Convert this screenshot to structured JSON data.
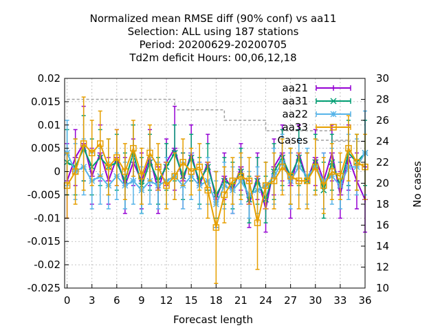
{
  "title_lines": [
    "Normalized mean RMSE diff (90% conf) vs aa11",
    "Selection: ALL using   187 stations",
    "Period: 20200629-20200705",
    "Td2m deficit   Hours:  00,06,12,18"
  ],
  "chart_data": {
    "type": "line",
    "title": "Normalized mean RMSE diff (90% conf) vs aa11",
    "xlabel": "Forecast length",
    "ylabel": "",
    "y2label": "No cases",
    "xlim": [
      -0.3,
      36
    ],
    "ylim": [
      -0.025,
      0.02
    ],
    "y2lim": [
      10,
      30
    ],
    "x_ticks": [
      0,
      3,
      6,
      9,
      12,
      15,
      18,
      21,
      24,
      27,
      30,
      33,
      36
    ],
    "y_ticks": [
      -0.025,
      -0.02,
      -0.015,
      -0.01,
      -0.005,
      0,
      0.005,
      0.01,
      0.015,
      0.02
    ],
    "y_tick_labels": [
      "-0.025",
      "-0.02",
      "-0.015",
      "-0.01",
      "-0.005",
      "0",
      "0.005",
      "0.01",
      "0.015",
      "0.02"
    ],
    "y2_ticks": [
      10,
      12,
      14,
      16,
      18,
      20,
      22,
      24,
      26,
      28,
      30
    ],
    "grid": true,
    "legend_position": "top-right",
    "x": [
      0,
      1,
      2,
      3,
      4,
      5,
      6,
      7,
      8,
      9,
      10,
      11,
      12,
      13,
      14,
      15,
      16,
      17,
      18,
      19,
      20,
      21,
      22,
      23,
      24,
      25,
      26,
      27,
      28,
      29,
      30,
      31,
      32,
      33,
      34,
      35,
      36
    ],
    "series": [
      {
        "name": "aa21",
        "color": "#9400d3",
        "marker": "plus",
        "values": [
          -0.002,
          0.003,
          0.006,
          -0.001,
          0.004,
          -0.002,
          0.003,
          -0.003,
          0.002,
          -0.002,
          0.003,
          -0.004,
          0.002,
          0.005,
          -0.002,
          0.004,
          -0.003,
          0.002,
          -0.006,
          -0.001,
          -0.004,
          0.001,
          -0.007,
          -0.001,
          -0.008,
          0.001,
          0.004,
          -0.003,
          0.004,
          -0.002,
          0.003,
          -0.002,
          0.004,
          -0.005,
          0.003,
          -0.002,
          -0.006
        ],
        "err": [
          0.008,
          0.006,
          0.008,
          0.006,
          0.006,
          0.005,
          0.006,
          0.006,
          0.005,
          0.006,
          0.006,
          0.005,
          0.005,
          0.009,
          0.006,
          0.006,
          0.005,
          0.006,
          0.006,
          0.005,
          0.005,
          0.005,
          0.005,
          0.005,
          0.005,
          0.006,
          0.006,
          0.007,
          0.006,
          0.006,
          0.006,
          0.006,
          0.006,
          0.005,
          0.007,
          0.006,
          0.007
        ]
      },
      {
        "name": "aa31",
        "color": "#009e73",
        "marker": "cross",
        "values": [
          0.002,
          0.001,
          0.005,
          0.001,
          0.003,
          0.001,
          0.002,
          -0.002,
          0.004,
          -0.003,
          0.002,
          -0.002,
          0.001,
          0.004,
          -0.001,
          0.003,
          -0.002,
          0.001,
          -0.005,
          -0.002,
          -0.003,
          0.0,
          -0.006,
          -0.002,
          -0.006,
          0.0,
          0.003,
          -0.001,
          0.003,
          -0.002,
          0.002,
          -0.004,
          0.002,
          -0.003,
          0.004,
          0.002,
          0.004
        ],
        "err": [
          0.007,
          0.006,
          0.007,
          0.006,
          0.006,
          0.006,
          0.006,
          0.006,
          0.006,
          0.006,
          0.006,
          0.005,
          0.005,
          0.006,
          0.005,
          0.005,
          0.005,
          0.005,
          0.005,
          0.005,
          0.005,
          0.005,
          0.005,
          0.005,
          0.005,
          0.006,
          0.006,
          0.006,
          0.006,
          0.006,
          0.006,
          0.006,
          0.006,
          0.005,
          0.007,
          0.006,
          0.007
        ]
      },
      {
        "name": "aa22",
        "color": "#56b4e9",
        "marker": "star",
        "values": [
          0.004,
          0.0,
          0.001,
          -0.002,
          -0.001,
          -0.003,
          -0.001,
          -0.003,
          -0.002,
          -0.004,
          -0.002,
          -0.003,
          -0.002,
          -0.001,
          -0.003,
          -0.001,
          -0.003,
          -0.002,
          -0.007,
          -0.003,
          -0.004,
          -0.002,
          -0.005,
          -0.004,
          -0.003,
          -0.001,
          0.002,
          -0.002,
          0.001,
          -0.001,
          0.001,
          -0.002,
          -0.001,
          -0.003,
          0.001,
          0.001,
          0.004
        ],
        "err": [
          0.007,
          0.006,
          0.006,
          0.006,
          0.006,
          0.005,
          0.005,
          0.005,
          0.005,
          0.005,
          0.005,
          0.005,
          0.005,
          0.005,
          0.005,
          0.005,
          0.005,
          0.005,
          0.005,
          0.005,
          0.005,
          0.005,
          0.005,
          0.005,
          0.005,
          0.006,
          0.006,
          0.006,
          0.006,
          0.006,
          0.006,
          0.006,
          0.006,
          0.005,
          0.007,
          0.006,
          0.009
        ]
      },
      {
        "name": "aa33",
        "color": "#e69f00",
        "marker": "square",
        "values": [
          -0.003,
          0.0,
          0.006,
          0.004,
          0.006,
          0.001,
          0.003,
          0.0,
          0.005,
          -0.001,
          0.004,
          0.001,
          -0.003,
          -0.001,
          0.002,
          0.0,
          0.001,
          -0.004,
          -0.012,
          -0.005,
          -0.002,
          -0.001,
          -0.002,
          -0.011,
          -0.003,
          -0.002,
          0.001,
          -0.001,
          -0.002,
          -0.002,
          0.001,
          -0.003,
          0.0,
          -0.001,
          0.005,
          0.002,
          0.001
        ],
        "err": [
          0.007,
          0.007,
          0.01,
          0.007,
          0.007,
          0.006,
          0.006,
          0.006,
          0.006,
          0.006,
          0.006,
          0.005,
          0.005,
          0.005,
          0.005,
          0.005,
          0.005,
          0.006,
          0.012,
          0.006,
          0.005,
          0.005,
          0.005,
          0.01,
          0.005,
          0.006,
          0.006,
          0.006,
          0.006,
          0.006,
          0.006,
          0.006,
          0.006,
          0.005,
          0.007,
          0.006,
          0.007
        ]
      },
      {
        "name": "Cases",
        "color": "#a0a0a0",
        "axis": "right",
        "dashed": true,
        "values": [
          28,
          28,
          28,
          28,
          28,
          28,
          28,
          28,
          28,
          28,
          28,
          28,
          28,
          27,
          27,
          27,
          27,
          27,
          27,
          26,
          26,
          26,
          26,
          26,
          25,
          25,
          25,
          25,
          25,
          25,
          25,
          25,
          24,
          24,
          24,
          24,
          24
        ]
      }
    ]
  }
}
